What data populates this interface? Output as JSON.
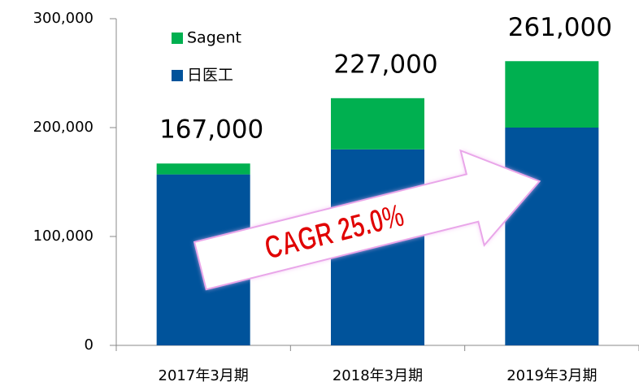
{
  "chart_data": {
    "type": "stacked_bar",
    "categories": [
      "2017年3月期",
      "2018年3月期",
      "2019年3月期"
    ],
    "series": [
      {
        "name": "日医工",
        "color": "#00539b",
        "values": [
          157000,
          180000,
          200000
        ]
      },
      {
        "name": "Sagent",
        "color": "#00b050",
        "values": [
          10000,
          47000,
          61000
        ]
      }
    ],
    "totals": [
      167000,
      227000,
      261000
    ],
    "total_labels": [
      "167,000",
      "227,000",
      "261,000"
    ],
    "annotation": "CAGR 25.0%",
    "ylim": [
      0,
      300000
    ],
    "yticks": [
      0,
      {
        "value": 100000,
        "label": "100,000"
      },
      {
        "value": 200000,
        "label": "200,000"
      },
      {
        "value": 300000,
        "label": "300,000"
      }
    ]
  }
}
